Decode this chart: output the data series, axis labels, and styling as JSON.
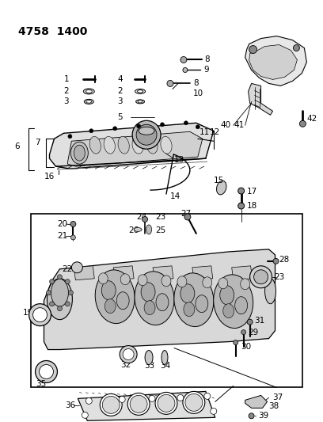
{
  "title": "4758  1400",
  "bg_color": "#ffffff",
  "line_color": "#000000",
  "text_color": "#000000",
  "title_fontsize": 10,
  "label_fontsize": 7.5,
  "fig_width": 4.08,
  "fig_height": 5.33,
  "dpi": 100
}
